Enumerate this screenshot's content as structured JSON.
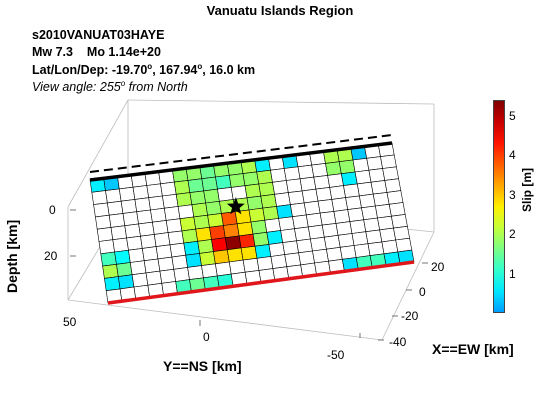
{
  "title": "Vanuatu Islands Region",
  "event_id": "s2010VANUAT03HAYE",
  "mw_label": "Mw 7.3",
  "mo_label": "Mo 1.14e+20",
  "latlon_prefix": "Lat/Lon/Dep: -19.70",
  "lon_text": ", 167.94",
  "dep_text": ", 16.0 km",
  "degree_symbol": "o",
  "view_prefix": "View angle: 255",
  "view_suffix": " from North",
  "axes": {
    "ylabel": "Y==NS [km]",
    "xlabel": "X==EW [km]",
    "zlabel": "Depth [km]",
    "y_ticks": [
      "50",
      "0",
      "-50"
    ],
    "x_ticks": [
      "20",
      "0",
      "-20",
      "-40"
    ],
    "z_ticks": [
      "0",
      "20"
    ]
  },
  "colorbar": {
    "label": "Slip [m]",
    "ticks": [
      "5",
      "4",
      "3",
      "2",
      "1"
    ],
    "tick_values": [
      5,
      4,
      3,
      2,
      1
    ],
    "range": [
      0,
      5.4
    ]
  },
  "chart_data": {
    "type": "heatmap",
    "grid_rows": 10,
    "grid_cols": 22,
    "slip_m": [
      [
        0.6,
        0.3,
        0,
        0,
        0,
        0,
        1.8,
        1.8,
        1.5,
        1.8,
        1.8,
        2.0,
        0.6,
        0,
        0.5,
        0,
        0,
        2.0,
        2.0,
        0.3,
        0,
        0
      ],
      [
        0,
        0,
        0,
        0,
        0,
        0,
        2.0,
        1.5,
        1.5,
        1.2,
        1.8,
        1.8,
        2.0,
        0,
        0,
        0,
        0,
        1.8,
        1.8,
        0,
        0,
        0
      ],
      [
        0,
        0,
        0,
        0,
        0,
        0,
        2.0,
        1.8,
        1.8,
        0,
        0,
        2.0,
        2.0,
        0,
        0,
        0,
        0,
        0,
        0.6,
        0,
        0,
        0
      ],
      [
        0,
        0,
        0,
        0,
        0,
        0,
        0,
        2.0,
        1.8,
        2.0,
        2.0,
        1.8,
        2.0,
        0,
        0,
        0,
        0,
        0,
        0,
        0,
        0,
        0
      ],
      [
        0,
        0,
        0,
        0,
        0,
        0,
        2.2,
        2.0,
        2.2,
        3.8,
        2.8,
        2.2,
        2.0,
        0.5,
        0,
        0,
        0,
        0,
        0,
        0,
        0,
        0
      ],
      [
        0,
        0,
        0,
        0,
        0,
        0,
        2.0,
        2.8,
        4.0,
        3.5,
        2.8,
        1.8,
        0,
        0,
        0,
        0,
        0,
        0,
        0,
        0,
        0,
        0
      ],
      [
        1.2,
        0.7,
        0,
        0,
        0,
        0,
        0.6,
        2.0,
        4.5,
        5.3,
        4.2,
        1.8,
        0.6,
        0,
        0,
        0,
        0,
        0,
        0,
        0,
        0,
        0
      ],
      [
        2.0,
        1.5,
        0,
        0,
        0,
        0,
        0.5,
        2.2,
        3.0,
        2.8,
        2.8,
        0.6,
        0,
        0,
        0,
        0,
        0,
        0,
        0,
        0,
        0,
        0
      ],
      [
        0.6,
        0.5,
        0,
        0,
        0,
        0,
        0,
        0,
        0,
        0,
        0,
        0,
        0,
        0,
        0,
        0,
        0,
        0,
        0,
        0,
        0,
        0
      ],
      [
        0,
        0,
        0,
        0,
        0,
        1.2,
        1.5,
        1.2,
        1.0,
        0,
        0,
        0,
        0,
        0,
        0,
        0,
        0,
        0.5,
        1.2,
        1.2,
        0.6,
        0.5
      ]
    ],
    "hypocenter": {
      "row": 3.1,
      "col": 9.6
    },
    "colorscale": "jet",
    "color_range": [
      0,
      5.4
    ]
  }
}
